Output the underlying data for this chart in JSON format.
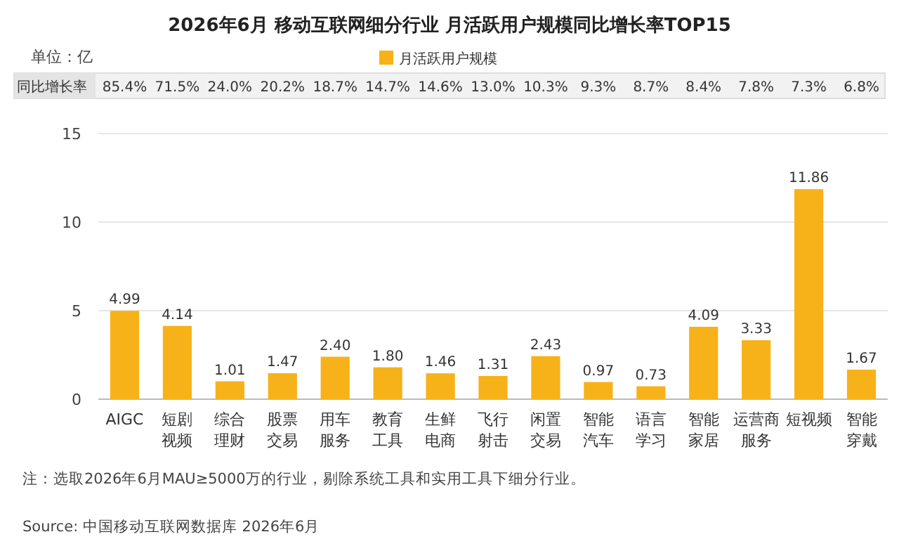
{
  "chart_data": {
    "type": "bar",
    "title": "2026年6月 移动互联网细分行业 月活跃用户规模同比增长率TOP15",
    "ylabel": "单位：亿",
    "categories": [
      "AIGC",
      "短剧视频",
      "综合理财",
      "股票交易",
      "用车服务",
      "教育工具",
      "生鲜电商",
      "飞行射击",
      "闲置交易",
      "智能汽车",
      "语言学习",
      "智能家居",
      "运营商服务",
      "短视频",
      "智能穿戴"
    ],
    "series": [
      {
        "name": "月活跃用户规模",
        "color": "#f7b21a",
        "values": [
          4.99,
          4.14,
          1.01,
          1.47,
          2.4,
          1.8,
          1.46,
          1.31,
          2.43,
          0.97,
          0.73,
          4.09,
          3.33,
          11.86,
          1.67
        ],
        "value_labels": [
          "4.99",
          "4.14",
          "1.01",
          "1.47",
          "2.40",
          "1.80",
          "1.46",
          "1.31",
          "2.43",
          "0.97",
          "0.73",
          "4.09",
          "3.33",
          "11.86",
          "1.67"
        ]
      }
    ],
    "ylim": [
      0,
      15
    ],
    "yticks": [
      0,
      5,
      10,
      15
    ],
    "grid": "y",
    "legend": "top",
    "annotations": [
      "同比增长率",
      "85.4%",
      "71.5%",
      "24.0%",
      "20.2%",
      "18.7%",
      "14.7%",
      "14.6%",
      "13.0%",
      "10.3%",
      "9.3%",
      "8.7%",
      "8.4%",
      "7.8%",
      "7.3%",
      "6.8%",
      "注：选取2026年6月MAU≥5000万的行业，剔除系统工具和实用工具下细分行业。",
      "Source: 中国移动互联网数据库 2026年6月"
    ]
  }
}
